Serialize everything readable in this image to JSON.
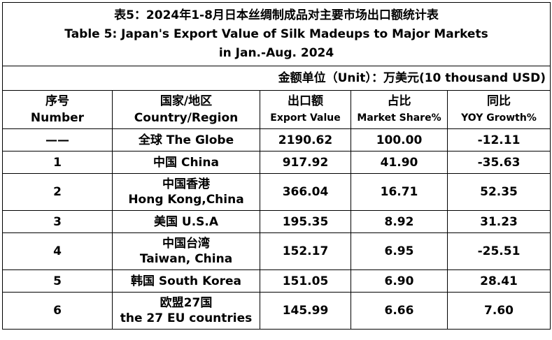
{
  "title": {
    "zh": "表5：2024年1-8月日本丝绸制成品对主要市场出口额统计表",
    "en_line1": "Table 5: Japan's Export Value of Silk Madeups to Major Markets",
    "en_line2": "in Jan.-Aug. 2024"
  },
  "unit": "金额单位（Unit）：万美元(10 thousand USD)",
  "headers": {
    "number_zh": "序号",
    "number_en": "Number",
    "country_zh": "国家/地区",
    "country_en": "Country/Region",
    "export_zh": "出口额",
    "export_en": "Export Value",
    "share_zh": "占比",
    "share_en": "Market Share%",
    "yoy_zh": "同比",
    "yoy_en": "YOY Growth%"
  },
  "rows": [
    {
      "number": "——",
      "country_line1": "全球 The Globe",
      "country_line2": "",
      "export": "2190.62",
      "share": "100.00",
      "yoy": "-12.11"
    },
    {
      "number": "1",
      "country_line1": "中国 China",
      "country_line2": "",
      "export": "917.92",
      "share": "41.90",
      "yoy": "-35.63"
    },
    {
      "number": "2",
      "country_line1": "中国香港",
      "country_line2": "Hong Kong,China",
      "export": "366.04",
      "share": "16.71",
      "yoy": "52.35"
    },
    {
      "number": "3",
      "country_line1": "美国 U.S.A",
      "country_line2": "",
      "export": "195.35",
      "share": "8.92",
      "yoy": "31.23"
    },
    {
      "number": "4",
      "country_line1": "中国台湾",
      "country_line2": "Taiwan, China",
      "export": "152.17",
      "share": "6.95",
      "yoy": "-25.51"
    },
    {
      "number": "5",
      "country_line1": "韩国 South Korea",
      "country_line2": "",
      "export": "151.05",
      "share": "6.90",
      "yoy": "28.41"
    },
    {
      "number": "6",
      "country_line1": "欧盟27国",
      "country_line2": "the 27 EU countries",
      "export": "145.99",
      "share": "6.66",
      "yoy": "7.60"
    }
  ]
}
